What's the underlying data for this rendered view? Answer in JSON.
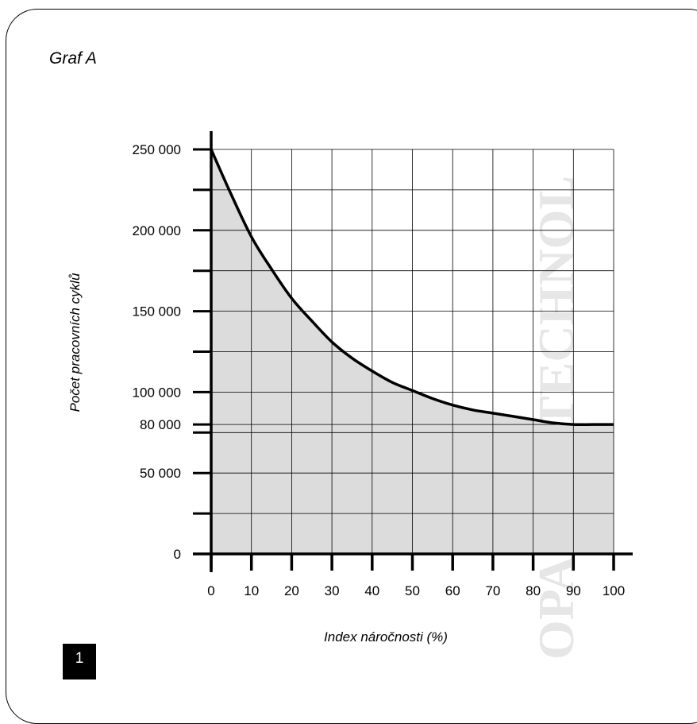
{
  "page": {
    "title": "Graf A",
    "page_number": "1"
  },
  "watermark": {
    "text": "OPARK® TECHNOL"
  },
  "chart_data": {
    "type": "area",
    "title": "Graf A",
    "xlabel": "Index náročnosti (%)",
    "ylabel": "Počet pracovních cyklů",
    "xlim": [
      0,
      100
    ],
    "ylim": [
      0,
      250000
    ],
    "x_ticks": [
      0,
      10,
      20,
      30,
      40,
      50,
      60,
      70,
      80,
      90,
      100
    ],
    "x_tick_labels": [
      "0",
      "10",
      "20",
      "30",
      "40",
      "50",
      "60",
      "70",
      "80",
      "90",
      "100"
    ],
    "y_ticks": [
      0,
      50000,
      80000,
      100000,
      150000,
      200000,
      250000
    ],
    "y_tick_labels": [
      "0",
      "50 000",
      "80 000",
      "100 000",
      "150 000",
      "200 000",
      "250 000"
    ],
    "grid": true,
    "series": [
      {
        "x": [
          0,
          5,
          10,
          15,
          20,
          25,
          30,
          35,
          40,
          45,
          50,
          55,
          60,
          65,
          70,
          75,
          80,
          85,
          90,
          95,
          100
        ],
        "values": [
          250000,
          222000,
          196000,
          176000,
          158000,
          144000,
          131000,
          121000,
          113000,
          106000,
          101000,
          96000,
          92000,
          89000,
          87000,
          85000,
          83000,
          81000,
          80000,
          80000,
          80000
        ]
      }
    ],
    "fill_color": "#dcdcdc",
    "line_color": "#000000"
  }
}
